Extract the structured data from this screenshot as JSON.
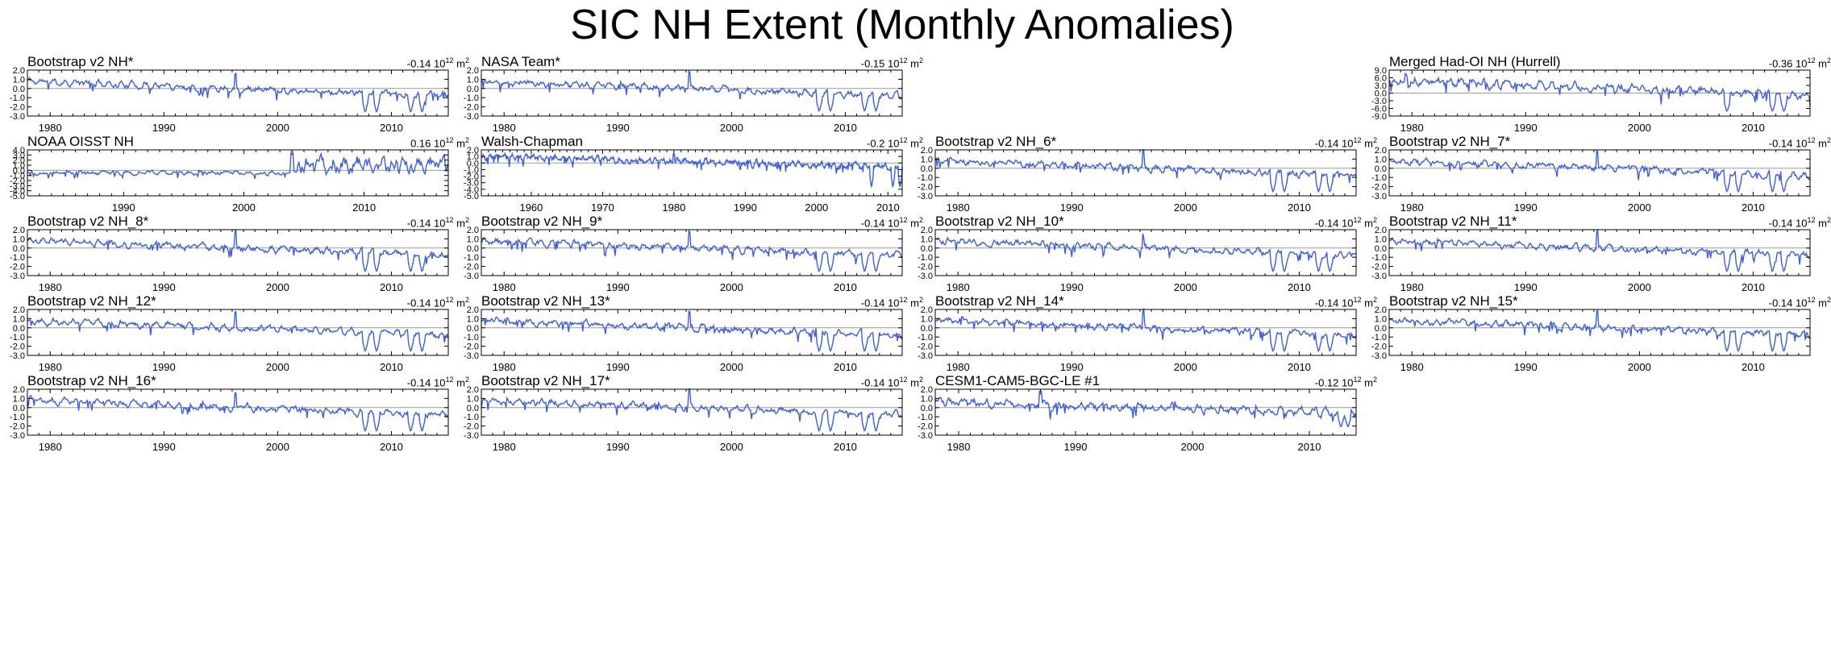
{
  "title": "SIC NH Extent (Monthly Anomalies)",
  "colors": {
    "line": "#3b5ee0",
    "zero_line": "#9a9a9a",
    "axis": "#000000"
  },
  "chart_data": [
    {
      "name": "Bootstrap v2 NH*",
      "title": "Bootstrap v2 NH*",
      "trend_value": "-0.14",
      "trend_unit": "10",
      "trend_exp": "12",
      "trend_m": "m",
      "trend_m_exp": "2",
      "type": "line",
      "slot": [
        0,
        0
      ],
      "x_range": [
        1978,
        2015
      ],
      "ylim": [
        -3,
        2
      ],
      "yticks": [
        "2.0",
        "1.0",
        "0.0",
        "-1.0",
        "-2.0",
        "-3.0"
      ],
      "xticks": [
        "1980",
        "1990",
        "2000",
        "2010"
      ],
      "mean_start": 0.8,
      "mean_end": -0.8,
      "amp": 0.35,
      "seed": 11,
      "big_spikes": [
        2007.7,
        2012.7,
        2011.7,
        2008.7
      ],
      "spike_depth": -2.7,
      "peak": 1996.3
    },
    {
      "name": "NASA Team*",
      "title": "NASA Team*",
      "trend_value": "-0.15",
      "trend_unit": "10",
      "trend_exp": "12",
      "trend_m": "m",
      "trend_m_exp": "2",
      "type": "line",
      "slot": [
        0,
        1
      ],
      "x_range": [
        1978,
        2015
      ],
      "ylim": [
        -3,
        2
      ],
      "yticks": [
        "2.0",
        "1.0",
        "0.0",
        "-1.0",
        "-2.0",
        "-3.0"
      ],
      "xticks": [
        "1980",
        "1990",
        "2000",
        "2010"
      ],
      "mean_start": 0.8,
      "mean_end": -0.8,
      "amp": 0.35,
      "seed": 12,
      "big_spikes": [
        2007.7,
        2012.7,
        2011.7,
        2008.7
      ],
      "spike_depth": -2.6,
      "peak": 1996.3
    },
    {
      "name": "Merged Had-OI NH (Hurrell)",
      "title": "Merged Had-OI NH (Hurrell)",
      "trend_value": "-0.36",
      "trend_unit": "10",
      "trend_exp": "12",
      "trend_m": "m",
      "trend_m_exp": "2",
      "type": "line",
      "slot": [
        0,
        3
      ],
      "x_range": [
        1978,
        2015
      ],
      "ylim": [
        -9,
        9
      ],
      "yticks": [
        "9.0",
        "6.0",
        "3.0",
        "0.0",
        "-3.0",
        "-6.0",
        "-9.0"
      ],
      "xticks": [
        "1980",
        "1990",
        "2000",
        "2010"
      ],
      "mean_start": 5,
      "mean_end": -1,
      "amp": 1.6,
      "seed": 13,
      "big_spikes": [
        2007.7,
        2012.7,
        2011.7
      ],
      "spike_depth": -7.5,
      "peak": 1979.5
    },
    {
      "name": "NOAA OISST NH",
      "title": "NOAA OISST NH",
      "trend_value": "0.16",
      "trend_unit": "10",
      "trend_exp": "12",
      "trend_m": "m",
      "trend_m_exp": "2",
      "type": "line",
      "slot": [
        1,
        0
      ],
      "x_range": [
        1982,
        2017
      ],
      "ylim": [
        -5,
        4
      ],
      "yticks": [
        "4.0",
        "3.0",
        "2.0",
        "1.0",
        "0.0",
        "-1.0",
        "-2.0",
        "-3.0",
        "-4.0",
        "-5.0"
      ],
      "xticks": [
        "1990",
        "2000",
        "2010"
      ],
      "mean_start": -0.5,
      "mean_end": -0.5,
      "amp": 0.4,
      "seed": 14,
      "big_spikes": [],
      "spike_depth": -2,
      "peak": 2004,
      "regime_shift": 2004.5,
      "regime_level": 1.0,
      "regime_amp": 1.6
    },
    {
      "name": "Walsh-Chapman",
      "title": "Walsh-Chapman",
      "trend_value": "-0.2",
      "trend_unit": "10",
      "trend_exp": "12",
      "trend_m": "m",
      "trend_m_exp": "2",
      "type": "line",
      "slot": [
        1,
        1
      ],
      "x_range": [
        1953,
        2012
      ],
      "ylim": [
        -5,
        2
      ],
      "yticks": [
        "2.0",
        "1.0",
        "0.0",
        "-1.0",
        "-2.0",
        "-3.0",
        "-4.0",
        "-5.0"
      ],
      "xticks": [
        "1960",
        "1970",
        "1980",
        "1990",
        "2000",
        "2010"
      ],
      "mean_start": 1.0,
      "mean_end": -0.6,
      "amp": 0.45,
      "seed": 15,
      "big_spikes": [
        2007.7,
        2010.7,
        2011.7
      ],
      "spike_depth": -3.8,
      "peak": 1980
    },
    {
      "name": "Bootstrap v2 NH_6*",
      "title": "Bootstrap v2 NH_6*",
      "trend_value": "-0.14",
      "trend_unit": "10",
      "trend_exp": "12",
      "trend_m": "m",
      "trend_m_exp": "2",
      "type": "line",
      "slot": [
        1,
        2
      ],
      "x_range": [
        1978,
        2015
      ],
      "ylim": [
        -3,
        2
      ],
      "yticks": [
        "2.0",
        "1.0",
        "0.0",
        "-1.0",
        "-2.0",
        "-3.0"
      ],
      "xticks": [
        "1980",
        "1990",
        "2000",
        "2010"
      ],
      "mean_start": 0.8,
      "mean_end": -0.8,
      "amp": 0.35,
      "seed": 16,
      "big_spikes": [
        2007.7,
        2012.7,
        2011.7,
        2008.7
      ],
      "spike_depth": -2.7,
      "peak": 1996.3
    },
    {
      "name": "Bootstrap v2 NH_7*",
      "title": "Bootstrap v2 NH_7*",
      "trend_value": "-0.14",
      "trend_unit": "10",
      "trend_exp": "12",
      "trend_m": "m",
      "trend_m_exp": "2",
      "type": "line",
      "slot": [
        1,
        3
      ],
      "x_range": [
        1978,
        2015
      ],
      "ylim": [
        -3,
        2
      ],
      "yticks": [
        "2.0",
        "1.0",
        "0.0",
        "-1.0",
        "-2.0",
        "-3.0"
      ],
      "xticks": [
        "1980",
        "1990",
        "2000",
        "2010"
      ],
      "mean_start": 0.8,
      "mean_end": -0.8,
      "amp": 0.35,
      "seed": 17,
      "big_spikes": [
        2007.7,
        2012.7,
        2011.7,
        2008.7
      ],
      "spike_depth": -2.7,
      "peak": 1996.3
    },
    {
      "name": "Bootstrap v2 NH_8*",
      "title": "Bootstrap v2 NH_8*",
      "trend_value": "-0.14",
      "trend_unit": "10",
      "trend_exp": "12",
      "trend_m": "m",
      "trend_m_exp": "2",
      "type": "line",
      "slot": [
        2,
        0
      ],
      "x_range": [
        1978,
        2015
      ],
      "ylim": [
        -3,
        2
      ],
      "yticks": [
        "2.0",
        "1.0",
        "0.0",
        "-1.0",
        "-2.0",
        "-3.0"
      ],
      "xticks": [
        "1980",
        "1990",
        "2000",
        "2010"
      ],
      "mean_start": 0.8,
      "mean_end": -0.8,
      "amp": 0.35,
      "seed": 18,
      "big_spikes": [
        2007.7,
        2012.7,
        2011.7,
        2008.7
      ],
      "spike_depth": -2.7,
      "peak": 1996.3
    },
    {
      "name": "Bootstrap v2 NH_9*",
      "title": "Bootstrap v2 NH_9*",
      "trend_value": "-0.14",
      "trend_unit": "10",
      "trend_exp": "12",
      "trend_m": "m",
      "trend_m_exp": "2",
      "type": "line",
      "slot": [
        2,
        1
      ],
      "x_range": [
        1978,
        2015
      ],
      "ylim": [
        -3,
        2
      ],
      "yticks": [
        "2.0",
        "1.0",
        "0.0",
        "-1.0",
        "-2.0",
        "-3.0"
      ],
      "xticks": [
        "1980",
        "1990",
        "2000",
        "2010"
      ],
      "mean_start": 0.8,
      "mean_end": -0.8,
      "amp": 0.35,
      "seed": 19,
      "big_spikes": [
        2007.7,
        2012.7,
        2011.7,
        2008.7
      ],
      "spike_depth": -2.7,
      "peak": 1996.3
    },
    {
      "name": "Bootstrap v2 NH_10*",
      "title": "Bootstrap v2 NH_10*",
      "trend_value": "-0.14",
      "trend_unit": "10",
      "trend_exp": "12",
      "trend_m": "m",
      "trend_m_exp": "2",
      "type": "line",
      "slot": [
        2,
        2
      ],
      "x_range": [
        1978,
        2015
      ],
      "ylim": [
        -3,
        2
      ],
      "yticks": [
        "2.0",
        "1.0",
        "0.0",
        "-1.0",
        "-2.0",
        "-3.0"
      ],
      "xticks": [
        "1980",
        "1990",
        "2000",
        "2010"
      ],
      "mean_start": 0.8,
      "mean_end": -0.8,
      "amp": 0.35,
      "seed": 20,
      "big_spikes": [
        2007.7,
        2012.7,
        2011.7,
        2008.7
      ],
      "spike_depth": -2.7,
      "peak": 1996.3
    },
    {
      "name": "Bootstrap v2 NH_11*",
      "title": "Bootstrap v2 NH_11*",
      "trend_value": "-0.14",
      "trend_unit": "10",
      "trend_exp": "12",
      "trend_m": "m",
      "trend_m_exp": "2",
      "type": "line",
      "slot": [
        2,
        3
      ],
      "x_range": [
        1978,
        2015
      ],
      "ylim": [
        -3,
        2
      ],
      "yticks": [
        "2.0",
        "1.0",
        "0.0",
        "-1.0",
        "-2.0",
        "-3.0"
      ],
      "xticks": [
        "1980",
        "1990",
        "2000",
        "2010"
      ],
      "mean_start": 0.8,
      "mean_end": -0.8,
      "amp": 0.35,
      "seed": 21,
      "big_spikes": [
        2007.7,
        2012.7,
        2011.7,
        2008.7
      ],
      "spike_depth": -2.7,
      "peak": 1996.3
    },
    {
      "name": "Bootstrap v2 NH_12*",
      "title": "Bootstrap v2 NH_12*",
      "trend_value": "-0.14",
      "trend_unit": "10",
      "trend_exp": "12",
      "trend_m": "m",
      "trend_m_exp": "2",
      "type": "line",
      "slot": [
        3,
        0
      ],
      "x_range": [
        1978,
        2015
      ],
      "ylim": [
        -3,
        2
      ],
      "yticks": [
        "2.0",
        "1.0",
        "0.0",
        "-1.0",
        "-2.0",
        "-3.0"
      ],
      "xticks": [
        "1980",
        "1990",
        "2000",
        "2010"
      ],
      "mean_start": 0.8,
      "mean_end": -0.8,
      "amp": 0.35,
      "seed": 22,
      "big_spikes": [
        2007.7,
        2012.7,
        2011.7,
        2008.7
      ],
      "spike_depth": -2.7,
      "peak": 1996.3
    },
    {
      "name": "Bootstrap v2 NH_13*",
      "title": "Bootstrap v2 NH_13*",
      "trend_value": "-0.14",
      "trend_unit": "10",
      "trend_exp": "12",
      "trend_m": "m",
      "trend_m_exp": "2",
      "type": "line",
      "slot": [
        3,
        1
      ],
      "x_range": [
        1978,
        2015
      ],
      "ylim": [
        -3,
        2
      ],
      "yticks": [
        "2.0",
        "1.0",
        "0.0",
        "-1.0",
        "-2.0",
        "-3.0"
      ],
      "xticks": [
        "1980",
        "1990",
        "2000",
        "2010"
      ],
      "mean_start": 0.8,
      "mean_end": -0.8,
      "amp": 0.35,
      "seed": 23,
      "big_spikes": [
        2007.7,
        2012.7,
        2011.7,
        2008.7
      ],
      "spike_depth": -2.7,
      "peak": 1996.3
    },
    {
      "name": "Bootstrap v2 NH_14*",
      "title": "Bootstrap v2 NH_14*",
      "trend_value": "-0.14",
      "trend_unit": "10",
      "trend_exp": "12",
      "trend_m": "m",
      "trend_m_exp": "2",
      "type": "line",
      "slot": [
        3,
        2
      ],
      "x_range": [
        1978,
        2015
      ],
      "ylim": [
        -3,
        2
      ],
      "yticks": [
        "2.0",
        "1.0",
        "0.0",
        "-1.0",
        "-2.0",
        "-3.0"
      ],
      "xticks": [
        "1980",
        "1990",
        "2000",
        "2010"
      ],
      "mean_start": 0.8,
      "mean_end": -0.8,
      "amp": 0.35,
      "seed": 24,
      "big_spikes": [
        2007.7,
        2012.7,
        2011.7,
        2008.7
      ],
      "spike_depth": -2.7,
      "peak": 1996.3
    },
    {
      "name": "Bootstrap v2 NH_15*",
      "title": "Bootstrap v2 NH_15*",
      "trend_value": "-0.14",
      "trend_unit": "10",
      "trend_exp": "12",
      "trend_m": "m",
      "trend_m_exp": "2",
      "type": "line",
      "slot": [
        3,
        3
      ],
      "x_range": [
        1978,
        2015
      ],
      "ylim": [
        -3,
        2
      ],
      "yticks": [
        "2.0",
        "1.0",
        "0.0",
        "-1.0",
        "-2.0",
        "-3.0"
      ],
      "xticks": [
        "1980",
        "1990",
        "2000",
        "2010"
      ],
      "mean_start": 0.8,
      "mean_end": -0.8,
      "amp": 0.35,
      "seed": 25,
      "big_spikes": [
        2007.7,
        2012.7,
        2011.7,
        2008.7
      ],
      "spike_depth": -2.7,
      "peak": 1996.3
    },
    {
      "name": "Bootstrap v2 NH_16*",
      "title": "Bootstrap v2 NH_16*",
      "trend_value": "-0.14",
      "trend_unit": "10",
      "trend_exp": "12",
      "trend_m": "m",
      "trend_m_exp": "2",
      "type": "line",
      "slot": [
        4,
        0
      ],
      "x_range": [
        1978,
        2015
      ],
      "ylim": [
        -3,
        2
      ],
      "yticks": [
        "2.0",
        "1.0",
        "0.0",
        "-1.0",
        "-2.0",
        "-3.0"
      ],
      "xticks": [
        "1980",
        "1990",
        "2000",
        "2010"
      ],
      "mean_start": 0.8,
      "mean_end": -0.8,
      "amp": 0.35,
      "seed": 26,
      "big_spikes": [
        2007.7,
        2012.7,
        2011.7,
        2008.7
      ],
      "spike_depth": -2.7,
      "peak": 1996.3
    },
    {
      "name": "Bootstrap v2 NH_17*",
      "title": "Bootstrap v2 NH_17*",
      "trend_value": "-0.14",
      "trend_unit": "10",
      "trend_exp": "12",
      "trend_m": "m",
      "trend_m_exp": "2",
      "type": "line",
      "slot": [
        4,
        1
      ],
      "x_range": [
        1978,
        2015
      ],
      "ylim": [
        -3,
        2
      ],
      "yticks": [
        "2.0",
        "1.0",
        "0.0",
        "-1.0",
        "-2.0",
        "-3.0"
      ],
      "xticks": [
        "1980",
        "1990",
        "2000",
        "2010"
      ],
      "mean_start": 0.8,
      "mean_end": -0.8,
      "amp": 0.35,
      "seed": 27,
      "big_spikes": [
        2007.7,
        2012.7,
        2011.7,
        2008.7
      ],
      "spike_depth": -2.7,
      "peak": 1996.3
    },
    {
      "name": "CESM1-CAM5-BGC-LE #1",
      "title": "CESM1-CAM5-BGC-LE #1",
      "trend_value": "-0.12",
      "trend_unit": "10",
      "trend_exp": "12",
      "trend_m": "m",
      "trend_m_exp": "2",
      "type": "line",
      "slot": [
        4,
        2
      ],
      "x_range": [
        1978,
        2014
      ],
      "ylim": [
        -3,
        2
      ],
      "yticks": [
        "2.0",
        "1.0",
        "0.0",
        "-1.0",
        "-2.0",
        "-3.0"
      ],
      "xticks": [
        "1980",
        "1990",
        "2000",
        "2010"
      ],
      "mean_start": 0.6,
      "mean_end": -0.6,
      "amp": 0.45,
      "seed": 28,
      "big_spikes": [
        2012.7,
        2013.3
      ],
      "spike_depth": -2.2,
      "peak": 1987
    }
  ]
}
